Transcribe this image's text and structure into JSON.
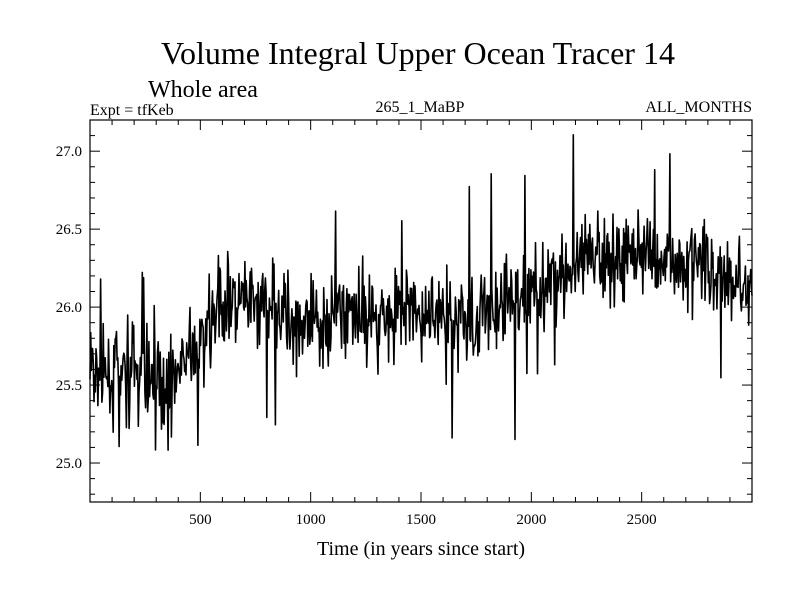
{
  "chart_data": {
    "type": "line",
    "title": "Volume Integral Upper Ocean Tracer 14",
    "subtitle": "Whole area",
    "header_left": "Expt = tfKeb",
    "header_center": "265_1_MaBP",
    "header_right": "ALL_MONTHS",
    "xlabel": "Time (in years since start)",
    "ylabel": "",
    "xlim": [
      0,
      3000
    ],
    "ylim": [
      24.75,
      27.2
    ],
    "xticks": [
      500,
      1000,
      1500,
      2000,
      2500
    ],
    "yticks": [
      25.0,
      25.5,
      26.0,
      26.5,
      27.0
    ],
    "xtick_labels": [
      "500",
      "1000",
      "1500",
      "2000",
      "2500"
    ],
    "ytick_labels": [
      "25.0",
      "25.5",
      "26.0",
      "26.5",
      "27.0"
    ],
    "grid": false,
    "line_color": "#000000",
    "series": [
      {
        "x": [
          0,
          100,
          200,
          300,
          400,
          500,
          600,
          700,
          800,
          900,
          1000,
          1100,
          1200,
          1300,
          1400,
          1500,
          1600,
          1700,
          1800,
          1900,
          2000,
          2100,
          2200,
          2300,
          2400,
          2500,
          2600,
          2700,
          2800,
          2900,
          3000
        ],
        "values": [
          25.6,
          25.55,
          25.6,
          25.5,
          25.6,
          25.75,
          26.05,
          26.0,
          26.0,
          25.95,
          25.85,
          25.95,
          26.0,
          25.95,
          26.0,
          25.95,
          25.95,
          25.9,
          25.95,
          26.05,
          26.1,
          26.2,
          26.25,
          26.3,
          26.35,
          26.35,
          26.3,
          26.3,
          26.25,
          26.2,
          26.1
        ]
      }
    ]
  }
}
